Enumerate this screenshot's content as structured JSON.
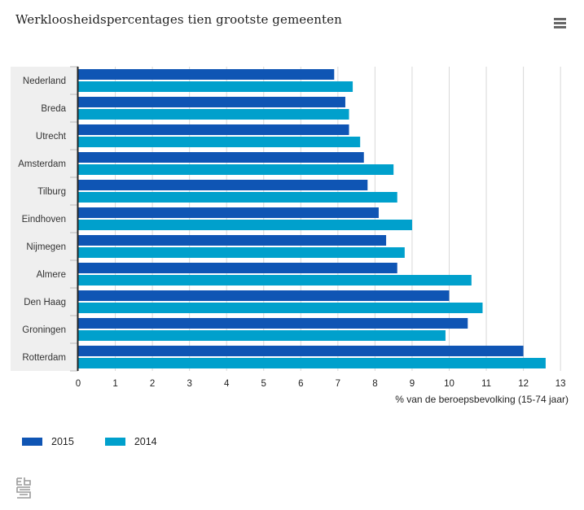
{
  "header": {
    "title": "Werkloosheidspercentages tien grootste gemeenten",
    "menu_icon": "hamburger-menu-icon"
  },
  "colors": {
    "series_2015": "#0f55b4",
    "series_2014": "#00a0cc",
    "category_band": "#efefef",
    "gridline": "#d8d8d8",
    "axis": "#222222"
  },
  "legend": [
    {
      "label": "2015",
      "color": "#0f55b4"
    },
    {
      "label": "2014",
      "color": "#00a0cc"
    }
  ],
  "footer": {
    "logo": "cbs-logo-icon"
  },
  "chart_data": {
    "type": "bar",
    "orientation": "horizontal",
    "title": "Werkloosheidspercentages tien grootste gemeenten",
    "xlabel": "% van de beroepsbevolking (15-74 jaar)",
    "ylabel": "",
    "xlim": [
      0,
      13
    ],
    "xticks": [
      "0",
      "1",
      "2",
      "3",
      "4",
      "5",
      "6",
      "7",
      "8",
      "9",
      "10",
      "11",
      "12",
      "13"
    ],
    "grid": true,
    "legend_position": "bottom-left",
    "categories": [
      "Nederland",
      "Breda",
      "Utrecht",
      "Amsterdam",
      "Tilburg",
      "Eindhoven",
      "Nijmegen",
      "Almere",
      "Den Haag",
      "Groningen",
      "Rotterdam"
    ],
    "series": [
      {
        "name": "2015",
        "color": "#0f55b4",
        "values": [
          6.9,
          7.2,
          7.3,
          7.7,
          7.8,
          8.1,
          8.3,
          8.6,
          10.0,
          10.5,
          12.0
        ]
      },
      {
        "name": "2014",
        "color": "#00a0cc",
        "values": [
          7.4,
          7.3,
          7.6,
          8.5,
          8.6,
          9.0,
          8.8,
          10.6,
          10.9,
          9.9,
          12.6
        ]
      }
    ]
  }
}
